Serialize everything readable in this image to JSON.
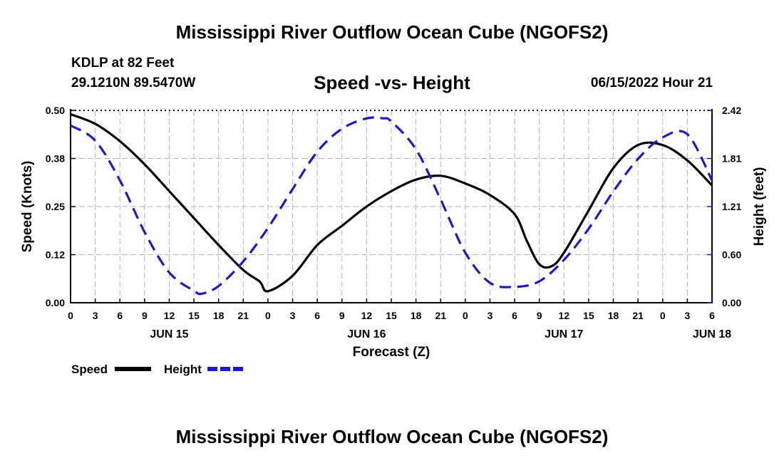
{
  "titles": {
    "main": "Mississippi River Outflow Ocean Cube (NGOFS2)",
    "repeat": "Mississippi River Outflow Ocean Cube (NGOFS2)"
  },
  "header": {
    "station": "KDLP at 82 Feet",
    "coords": "29.1210N  89.5470W",
    "chart_title": "Speed -vs- Height",
    "timestamp": "06/15/2022 Hour 21"
  },
  "colors": {
    "speed": "#000000",
    "height": "#1a1acc",
    "grid": "#b4b4b4"
  },
  "chart_data": {
    "type": "line",
    "title": "Speed -vs- Height",
    "xlabel": "Forecast (Z)",
    "ylabel": "Speed (Knots)",
    "y2label": "Height (feet)",
    "x_tick_labels": [
      "0",
      "3",
      "6",
      "9",
      "12",
      "15",
      "18",
      "21",
      "0",
      "3",
      "6",
      "9",
      "12",
      "15",
      "18",
      "21",
      "0",
      "3",
      "6",
      "9",
      "12",
      "15",
      "18",
      "21",
      "0",
      "3",
      "6"
    ],
    "x_day_labels": [
      {
        "label": "JUN 15",
        "hour": 12
      },
      {
        "label": "JUN 16",
        "hour": 36
      },
      {
        "label": "JUN 17",
        "hour": 60
      },
      {
        "label": "JUN 18",
        "hour": 78
      }
    ],
    "xlim": [
      0,
      78
    ],
    "ylim": [
      0,
      0.5
    ],
    "y2lim": [
      0,
      2.42
    ],
    "y_ticks": [
      "0.00",
      "0.12",
      "0.25",
      "0.38",
      "0.50"
    ],
    "y2_ticks": [
      "0.00",
      "0.60",
      "1.21",
      "1.81",
      "2.42"
    ],
    "grid": true,
    "series": [
      {
        "name": "Speed",
        "axis": "left",
        "style": "solid",
        "x": [
          0,
          3,
          6,
          9,
          12,
          15,
          18,
          21,
          23,
          24,
          27,
          30,
          33,
          36,
          39,
          42,
          45,
          48,
          51,
          54,
          55.5,
          57,
          58.5,
          60,
          63,
          66,
          69,
          72,
          75,
          78
        ],
        "values": [
          0.49,
          0.465,
          0.42,
          0.36,
          0.29,
          0.22,
          0.15,
          0.085,
          0.055,
          0.03,
          0.07,
          0.15,
          0.2,
          0.25,
          0.29,
          0.32,
          0.33,
          0.31,
          0.28,
          0.23,
          0.16,
          0.1,
          0.095,
          0.13,
          0.24,
          0.35,
          0.41,
          0.41,
          0.37,
          0.305
        ]
      },
      {
        "name": "Height",
        "axis": "right",
        "style": "dashed",
        "x": [
          0,
          3,
          6,
          9,
          12,
          15,
          16,
          18,
          21,
          24,
          27,
          30,
          33,
          36,
          38,
          39,
          42,
          45,
          48,
          51,
          54,
          57,
          60,
          63,
          66,
          69,
          72,
          75,
          78
        ],
        "values": [
          2.23,
          2.04,
          1.54,
          0.89,
          0.38,
          0.15,
          0.115,
          0.21,
          0.52,
          0.94,
          1.43,
          1.9,
          2.19,
          2.32,
          2.32,
          2.28,
          1.93,
          1.3,
          0.63,
          0.25,
          0.2,
          0.27,
          0.54,
          0.93,
          1.4,
          1.81,
          2.08,
          2.12,
          1.54
        ]
      }
    ],
    "legend": {
      "placement": "bottom-left",
      "entries": [
        "Speed",
        "Height"
      ]
    }
  }
}
